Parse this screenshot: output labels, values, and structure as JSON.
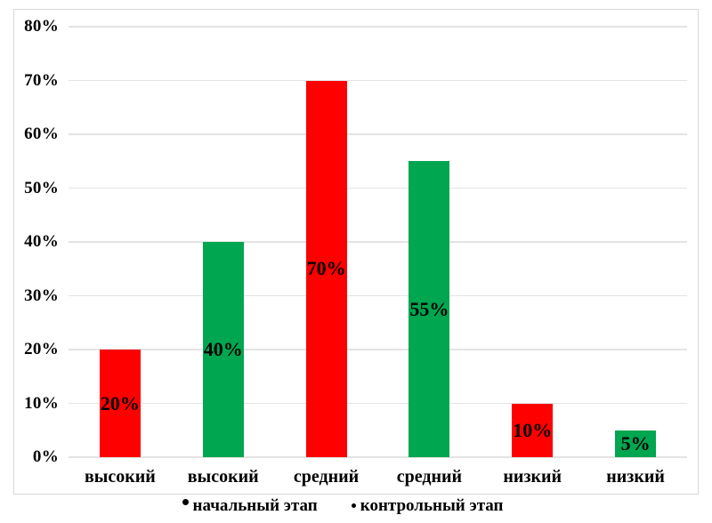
{
  "chart_data": {
    "type": "bar",
    "title": "",
    "xlabel": "",
    "ylabel": "",
    "ylim": [
      0,
      80
    ],
    "yticks": [
      "0%",
      "10%",
      "20%",
      "30%",
      "40%",
      "50%",
      "60%",
      "70%",
      "80%"
    ],
    "grid": true,
    "categories": [
      "высокий",
      "высокий",
      "средний",
      "средний",
      "низкий",
      "низкий"
    ],
    "bars": [
      {
        "category": "высокий",
        "series": "начальный этап",
        "value": 20,
        "label": "20%"
      },
      {
        "category": "высокий",
        "series": "контрольный этап",
        "value": 40,
        "label": "40%"
      },
      {
        "category": "средний",
        "series": "начальный этап",
        "value": 70,
        "label": "70%"
      },
      {
        "category": "средний",
        "series": "контрольный этап",
        "value": 55,
        "label": "55%"
      },
      {
        "category": "низкий",
        "series": "начальный этап",
        "value": 10,
        "label": "10%"
      },
      {
        "category": "низкий",
        "series": "контрольный этап",
        "value": 5,
        "label": "5%"
      }
    ],
    "series": [
      {
        "name": "начальный этап",
        "color": "#FE0000",
        "values": [
          20,
          70,
          10
        ]
      },
      {
        "name": "контрольный этап",
        "color": "#00A650",
        "values": [
          40,
          55,
          5
        ]
      }
    ],
    "legend": {
      "position": "bottom",
      "marker": "bullet",
      "marker_color": "#000000",
      "entries": [
        "начальный этап",
        "контрольный этап"
      ]
    }
  },
  "colors": {
    "background": "#FFFFFF",
    "grid": "#E3E3E3",
    "frame_border": "#D8D8D8",
    "text": "#000000"
  }
}
